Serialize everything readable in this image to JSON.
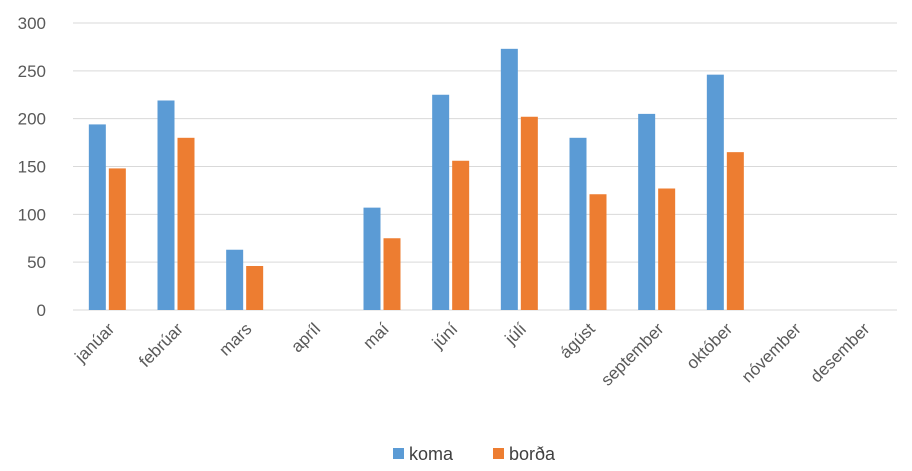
{
  "chart_data": {
    "type": "bar",
    "categories": [
      "janúar",
      "febrúar",
      "mars",
      "apríl",
      "maí",
      "júní",
      "júlí",
      "ágúst",
      "september",
      "október",
      "nóvember",
      "desember"
    ],
    "series": [
      {
        "name": "koma",
        "color": "#5B9BD5",
        "values": [
          194,
          219,
          63,
          null,
          107,
          225,
          273,
          180,
          205,
          246,
          null,
          null
        ]
      },
      {
        "name": "borða",
        "color": "#ED7D31",
        "values": [
          148,
          180,
          46,
          null,
          75,
          156,
          202,
          121,
          127,
          165,
          null,
          null
        ]
      }
    ],
    "title": "",
    "xlabel": "",
    "ylabel": "",
    "ylim": [
      0,
      300
    ],
    "yticks": [
      0,
      50,
      100,
      150,
      200,
      250,
      300
    ],
    "grid": true,
    "legend_position": "bottom"
  }
}
